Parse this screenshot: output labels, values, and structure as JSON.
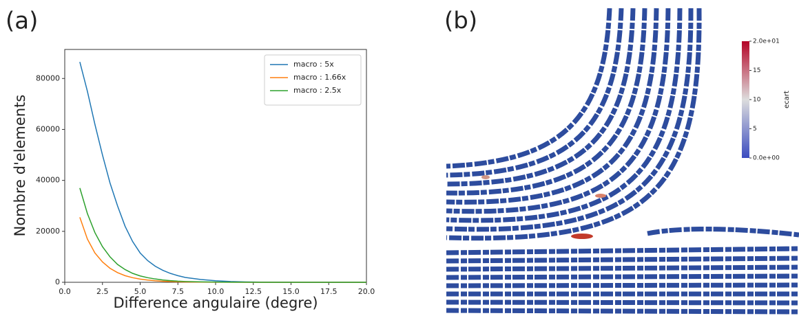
{
  "chart_data": [
    {
      "type": "line",
      "panel_label": "(a)",
      "x_label": "Difference angulaire (degre)",
      "y_label": "Nombre d'elements",
      "x": [
        1,
        1.5,
        2,
        2.5,
        3,
        3.5,
        4,
        4.5,
        5,
        5.5,
        6,
        6.5,
        7,
        7.5,
        8,
        9,
        10,
        11,
        12,
        13,
        14,
        15,
        16,
        17,
        18,
        19,
        20
      ],
      "series": [
        {
          "name": "macro : 5x",
          "color": "#1f77b4",
          "values": [
            86500,
            75000,
            62000,
            50000,
            39000,
            30000,
            22000,
            16000,
            11500,
            8500,
            6300,
            4700,
            3500,
            2600,
            1900,
            1100,
            600,
            300,
            150,
            80,
            40,
            20,
            10,
            5,
            3,
            1,
            0
          ]
        },
        {
          "name": "macro : 1.66x",
          "color": "#ff7f0e",
          "values": [
            25500,
            17000,
            11500,
            8000,
            5500,
            3800,
            2600,
            1800,
            1250,
            870,
            600,
            420,
            290,
            200,
            140,
            70,
            35,
            17,
            8,
            4,
            2,
            1,
            0,
            0,
            0,
            0,
            0
          ]
        },
        {
          "name": "macro : 2.5x",
          "color": "#2ca02c",
          "values": [
            37000,
            27000,
            19500,
            14000,
            10000,
            7000,
            5000,
            3500,
            2500,
            1800,
            1300,
            900,
            650,
            450,
            320,
            170,
            90,
            45,
            20,
            10,
            5,
            3,
            1,
            1,
            0,
            0,
            0
          ]
        }
      ],
      "xlim": [
        0,
        20
      ],
      "xticks": [
        {
          "value": 0,
          "label": "0.0"
        },
        2.5,
        {
          "value": 5,
          "label": "5.0"
        },
        7.5,
        {
          "value": 10,
          "label": "10.0"
        },
        12.5,
        {
          "value": 15,
          "label": "15.0"
        },
        17.5,
        {
          "value": 20,
          "label": "20.0"
        }
      ],
      "ylim": [
        0,
        91400
      ],
      "yticks": [
        0,
        20000,
        40000,
        60000,
        80000
      ],
      "legend": "upper right"
    },
    {
      "type": "image",
      "panel_label": "(b)",
      "colorbar": {
        "label": "ecart",
        "lim": [
          0,
          20
        ],
        "colors": [
          "#3b4cc0",
          "#dddddd",
          "#b40426"
        ],
        "ticks": [
          {
            "value": 0,
            "label": "0.0e+00"
          },
          5,
          10,
          15,
          {
            "value": 20,
            "label": "2.0e+01"
          }
        ]
      }
    }
  ]
}
